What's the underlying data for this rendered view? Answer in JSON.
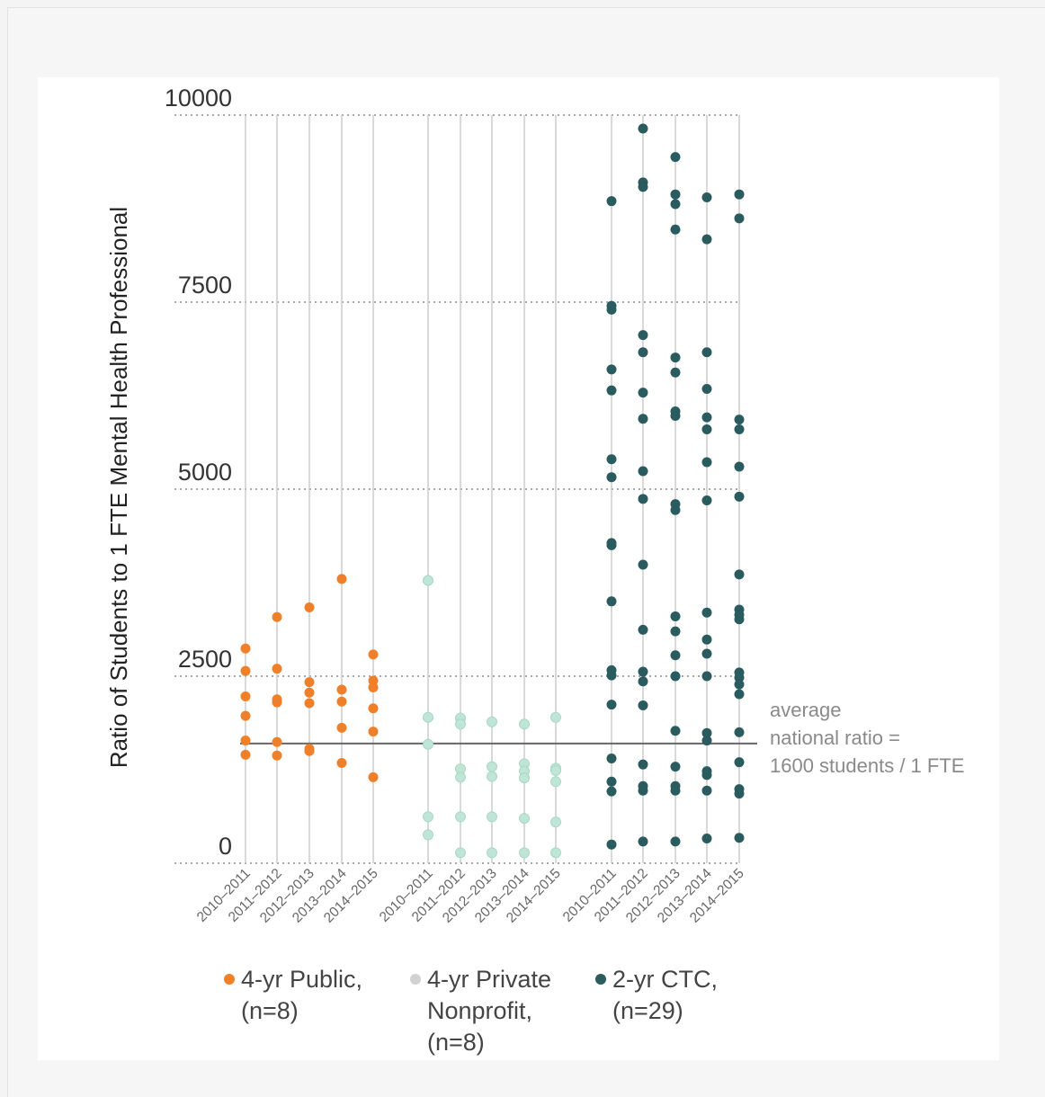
{
  "chart_data": {
    "type": "scatter",
    "title": "",
    "xlabel": "",
    "ylabel": "Ratio of Students to 1 FTE Mental Health Professional",
    "ylim": [
      0,
      10000
    ],
    "yticks": [
      0,
      2500,
      5000,
      7500,
      10000
    ],
    "grid": true,
    "legend_position": "bottom",
    "reference_line": {
      "value": 1600,
      "label_lines": [
        "average",
        "national ratio =",
        "1600 students / 1 FTE"
      ]
    },
    "groups": [
      {
        "name": "4-yr Public,",
        "legend_lines": [
          "4-yr Public,",
          "(n=8)"
        ],
        "color": "#f07f2a",
        "categories": [
          "2010–2011",
          "2011–2012",
          "2012–2013",
          "2013–2014",
          "2014–2015"
        ],
        "points": [
          [
            2870,
            2570,
            2230,
            1970,
            1640,
            1450
          ],
          [
            3290,
            2600,
            2190,
            2150,
            1620,
            1440
          ],
          [
            3420,
            2420,
            2280,
            2140,
            1530,
            1500
          ],
          [
            3800,
            2320,
            2160,
            1810,
            1340
          ],
          [
            2790,
            2440,
            2350,
            2070,
            1760,
            1150
          ]
        ]
      },
      {
        "name": "4-yr Private Nonprofit,",
        "legend_lines": [
          "4-yr Private",
          "Nonprofit,",
          "(n=8)"
        ],
        "color": "#bfe5d6",
        "categories": [
          "2010–2011",
          "2011–2012",
          "2012–2013",
          "2013–2014",
          "2014–2015"
        ],
        "points": [
          [
            3780,
            1950,
            1590,
            620,
            380
          ],
          [
            1940,
            1860,
            1260,
            1150,
            620,
            140
          ],
          [
            1890,
            1290,
            1160,
            620,
            140
          ],
          [
            1860,
            1330,
            1230,
            1140,
            600,
            140
          ],
          [
            1950,
            1270,
            1240,
            1090,
            550,
            140
          ]
        ]
      },
      {
        "name": "2-yr CTC,",
        "legend_lines": [
          "2-yr CTC,",
          "(n=29)"
        ],
        "color": "#2a5b5e",
        "categories": [
          "2010–2011",
          "2011–2012",
          "2012–2013",
          "2013–2014",
          "2014–2015"
        ],
        "points": [
          [
            8850,
            7450,
            7400,
            6600,
            6320,
            5400,
            5160,
            4280,
            4250,
            3500,
            2580,
            2510,
            2120,
            1400,
            1090,
            960,
            250
          ],
          [
            9820,
            9100,
            9040,
            7060,
            6830,
            6290,
            5940,
            5240,
            4870,
            3990,
            3120,
            2560,
            2430,
            2110,
            1320,
            1030,
            970,
            290
          ],
          [
            9440,
            8940,
            8810,
            8470,
            6760,
            6560,
            6040,
            5980,
            4800,
            4720,
            3300,
            3100,
            2780,
            2500,
            1770,
            1290,
            1030,
            970,
            290
          ],
          [
            8900,
            8340,
            6830,
            6340,
            5960,
            5800,
            5360,
            4850,
            3350,
            2990,
            2800,
            2500,
            1740,
            1640,
            1230,
            1180,
            970,
            330
          ],
          [
            8940,
            8620,
            5930,
            5800,
            5300,
            4900,
            3860,
            3390,
            3320,
            3260,
            2550,
            2480,
            2390,
            2260,
            1750,
            1350,
            990,
            930,
            340
          ]
        ]
      }
    ]
  }
}
